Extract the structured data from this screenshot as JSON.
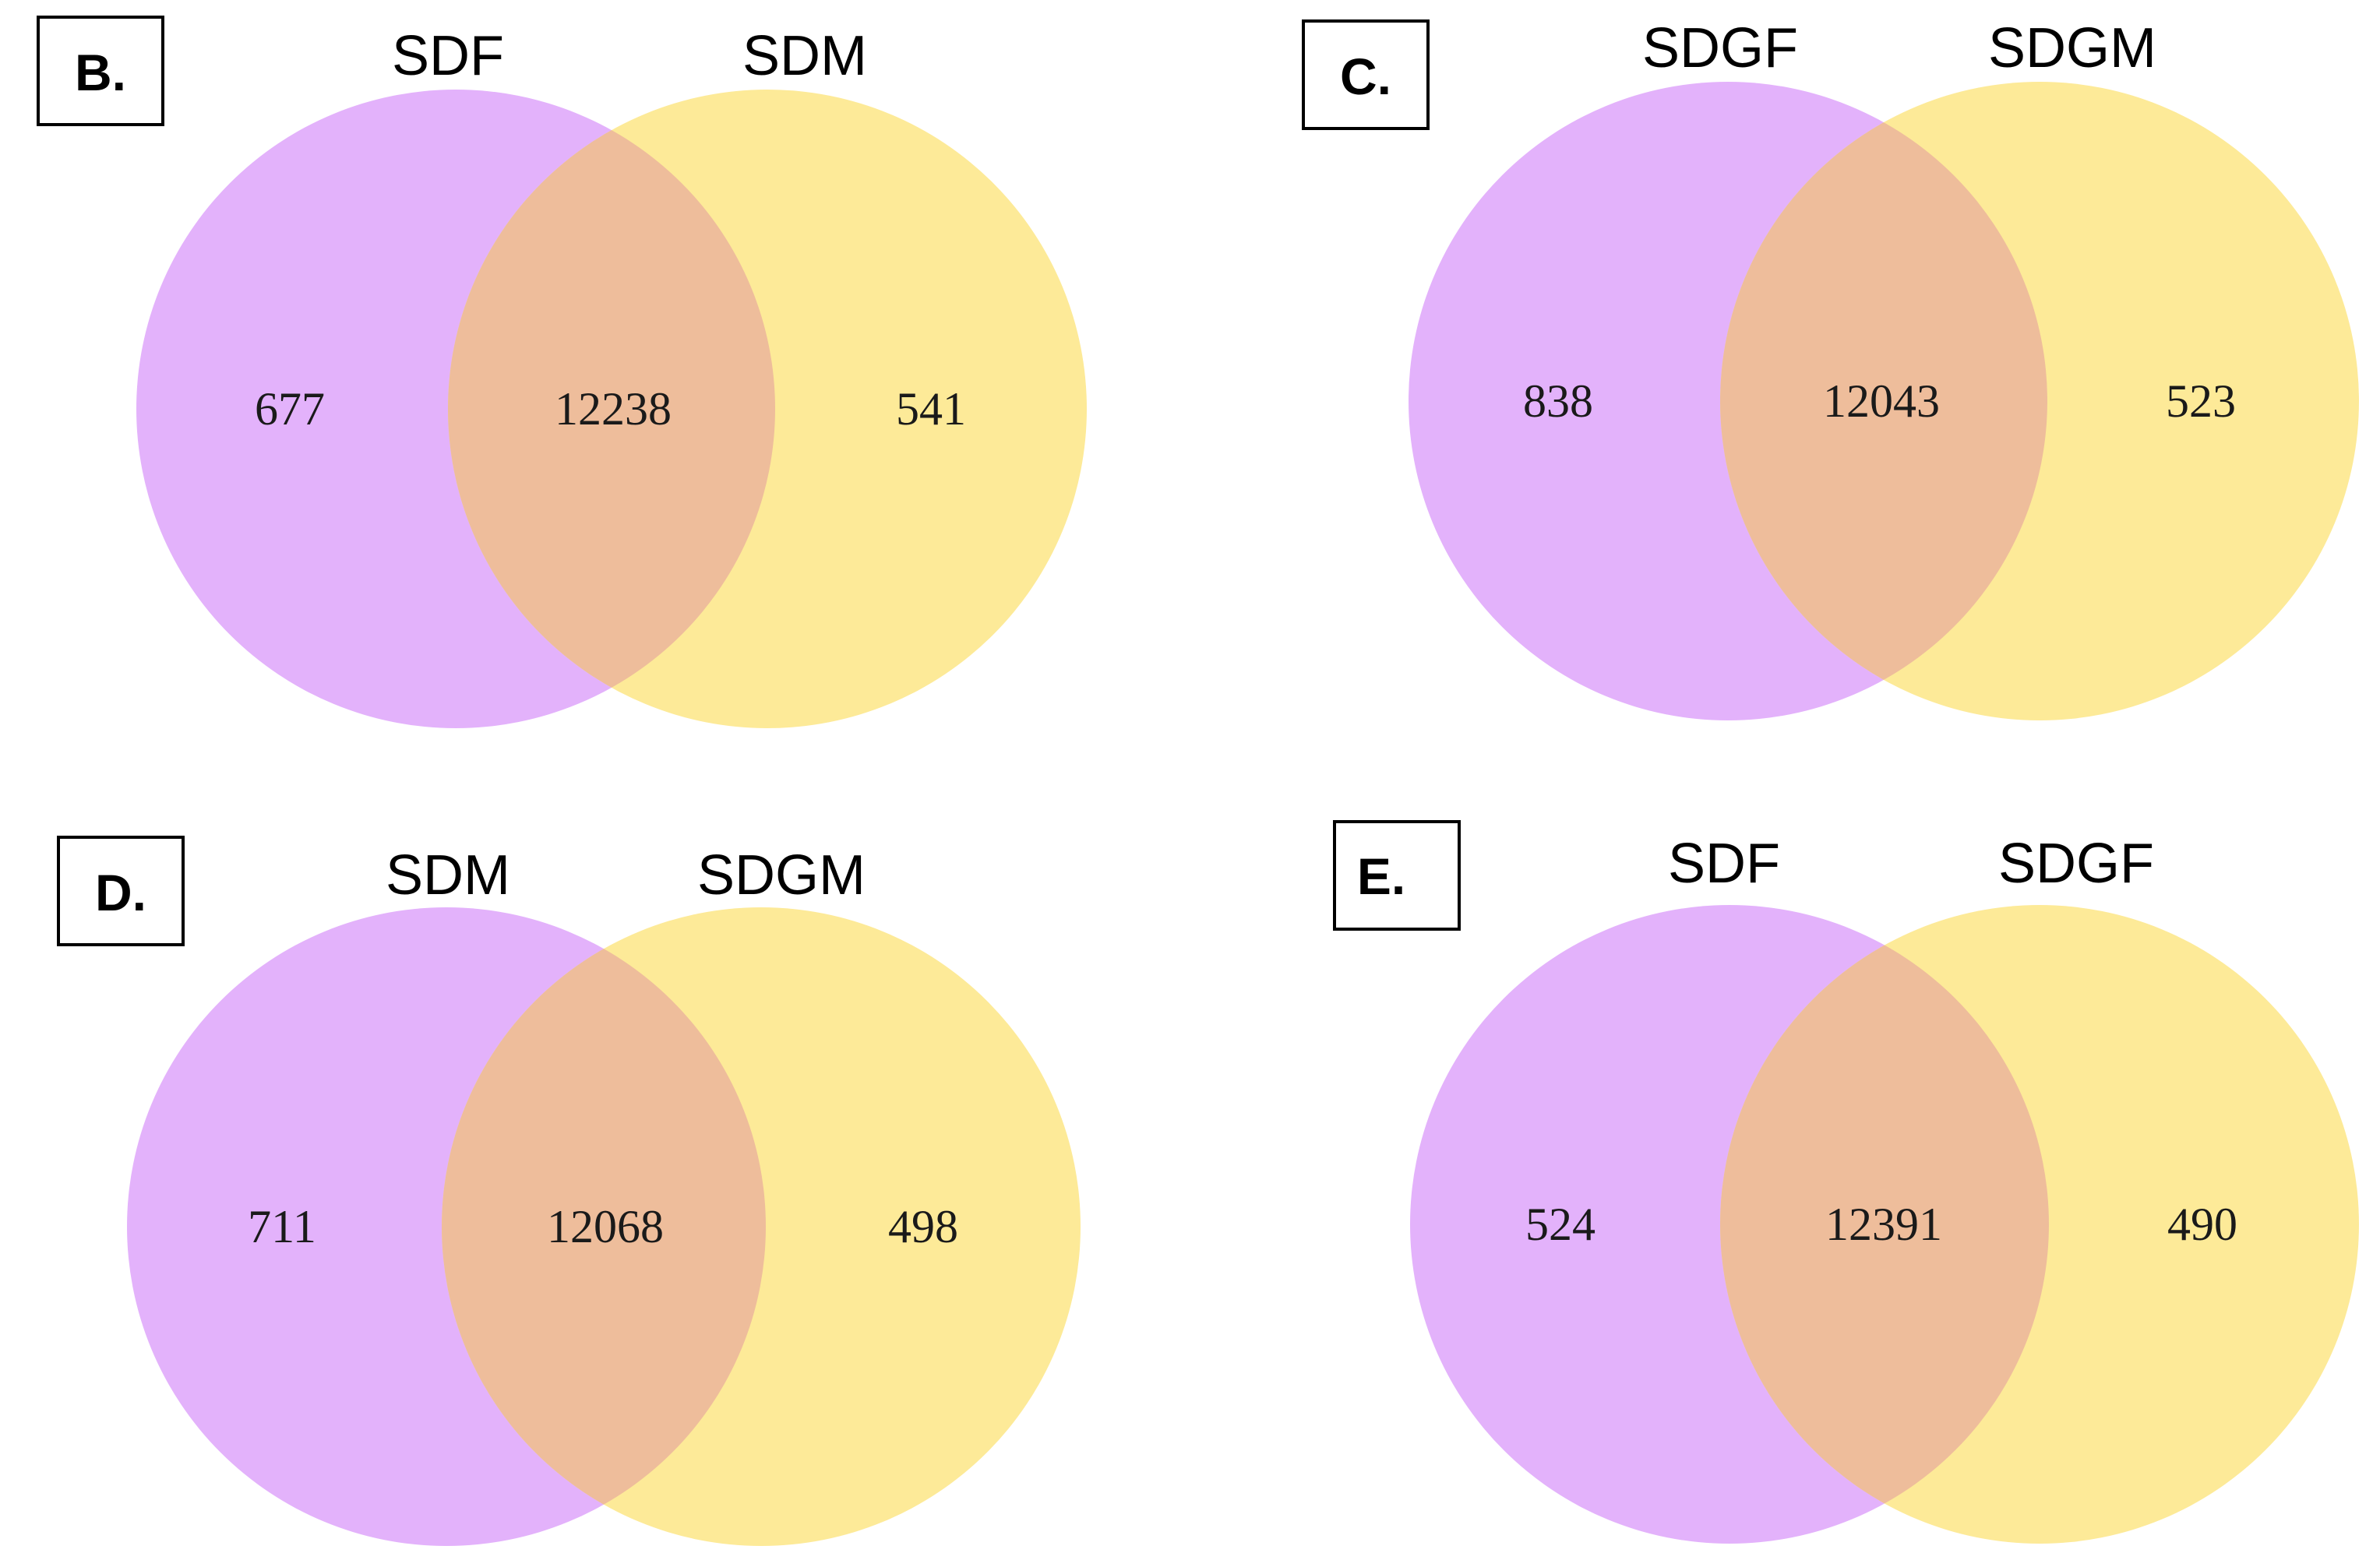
{
  "colors": {
    "left_set": "#e3b2fb",
    "right_set": "#fdea98",
    "overlap": "#eebd9b",
    "label_box_border": "#000000"
  },
  "panels": [
    {
      "label": "B.",
      "left_name": "SDF",
      "right_name": "SDM",
      "left_only": "677",
      "intersection": "12238",
      "right_only": "541"
    },
    {
      "label": "C.",
      "left_name": "SDGF",
      "right_name": "SDGM",
      "left_only": "838",
      "intersection": "12043",
      "right_only": "523"
    },
    {
      "label": "D.",
      "left_name": "SDM",
      "right_name": "SDGM",
      "left_only": "711",
      "intersection": "12068",
      "right_only": "498"
    },
    {
      "label": "E.",
      "left_name": "SDF",
      "right_name": "SDGF",
      "left_only": "524",
      "intersection": "12391",
      "right_only": "490"
    }
  ]
}
